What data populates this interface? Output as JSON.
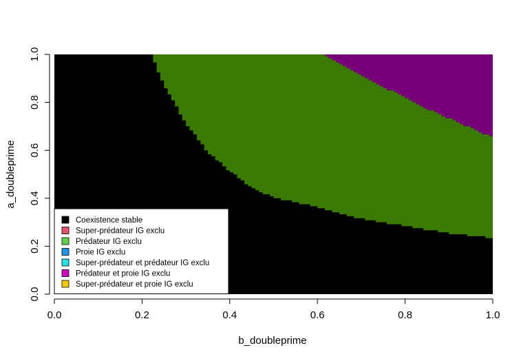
{
  "chart_data": {
    "type": "heatmap",
    "title": "",
    "xlabel": "b_doubleprime",
    "ylabel": "a_doubleprime",
    "xlim": [
      0,
      1
    ],
    "ylim": [
      0,
      1
    ],
    "x_ticks": [
      "0.0",
      "0.2",
      "0.4",
      "0.6",
      "0.8",
      "1.0"
    ],
    "y_ticks": [
      "0.0",
      "0.2",
      "0.4",
      "0.6",
      "0.8",
      "1.0"
    ],
    "grid": false,
    "legend_position": "bottom-left",
    "legend": [
      {
        "label": "Coexistence stable",
        "color": "#000000"
      },
      {
        "label": "Super-prédateur IG exclu",
        "color": "#DF536B"
      },
      {
        "label": "Prédateur IG exclu",
        "color": "#61D04F"
      },
      {
        "label": "Proie IG exclu",
        "color": "#2297E6"
      },
      {
        "label": "Super-prédateur et prédateur IG exclu",
        "color": "#28E2E5"
      },
      {
        "label": "Prédateur et proie IG exclu",
        "color": "#CD0BBC"
      },
      {
        "label": "Super-prédateur et proie IG exclu",
        "color": "#F5C710"
      }
    ],
    "regions": [
      {
        "outcome": "Coexistence stable",
        "color": "#000000"
      },
      {
        "outcome": "Prédateur IG exclu",
        "color": "#3A7A00",
        "lower_boundary": [
          [
            0.22,
            1.0
          ],
          [
            0.25,
            0.87
          ],
          [
            0.3,
            0.71
          ],
          [
            0.35,
            0.59
          ],
          [
            0.4,
            0.51
          ],
          [
            0.45,
            0.44
          ],
          [
            0.5,
            0.4
          ],
          [
            0.6,
            0.36
          ],
          [
            0.7,
            0.31
          ],
          [
            0.8,
            0.28
          ],
          [
            0.9,
            0.25
          ],
          [
            1.0,
            0.23
          ]
        ]
      },
      {
        "outcome": "Prédateur et proie IG exclu",
        "color": "#760077",
        "lower_boundary": [
          [
            0.61,
            1.0
          ],
          [
            0.65,
            0.96
          ],
          [
            0.7,
            0.91
          ],
          [
            0.75,
            0.86
          ],
          [
            0.8,
            0.82
          ],
          [
            0.85,
            0.77
          ],
          [
            0.9,
            0.73
          ],
          [
            0.95,
            0.69
          ],
          [
            1.0,
            0.65
          ]
        ]
      }
    ]
  }
}
